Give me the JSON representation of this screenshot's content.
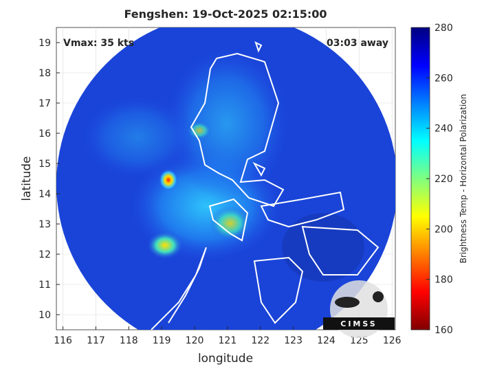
{
  "map": {
    "title": "Fengshen: 19-Oct-2025 02:15:00",
    "annotation_left": "Vmax: 35 kts",
    "annotation_right": "03:03 away",
    "xlabel": "longitude",
    "ylabel": "latitude",
    "xlim": [
      115.8,
      126.1
    ],
    "ylim": [
      9.5,
      19.5
    ],
    "xticks": [
      116,
      117,
      118,
      119,
      120,
      121,
      122,
      123,
      124,
      125,
      126
    ],
    "yticks": [
      10,
      11,
      12,
      13,
      14,
      15,
      16,
      17,
      18,
      19
    ],
    "grid": true,
    "colorbar": {
      "label": "Brightness Temp - Horizontal Polarization",
      "lim": [
        160,
        280
      ],
      "ticks": [
        160,
        180,
        200,
        220,
        240,
        260,
        280
      ]
    },
    "logo": "CIMSS"
  }
}
